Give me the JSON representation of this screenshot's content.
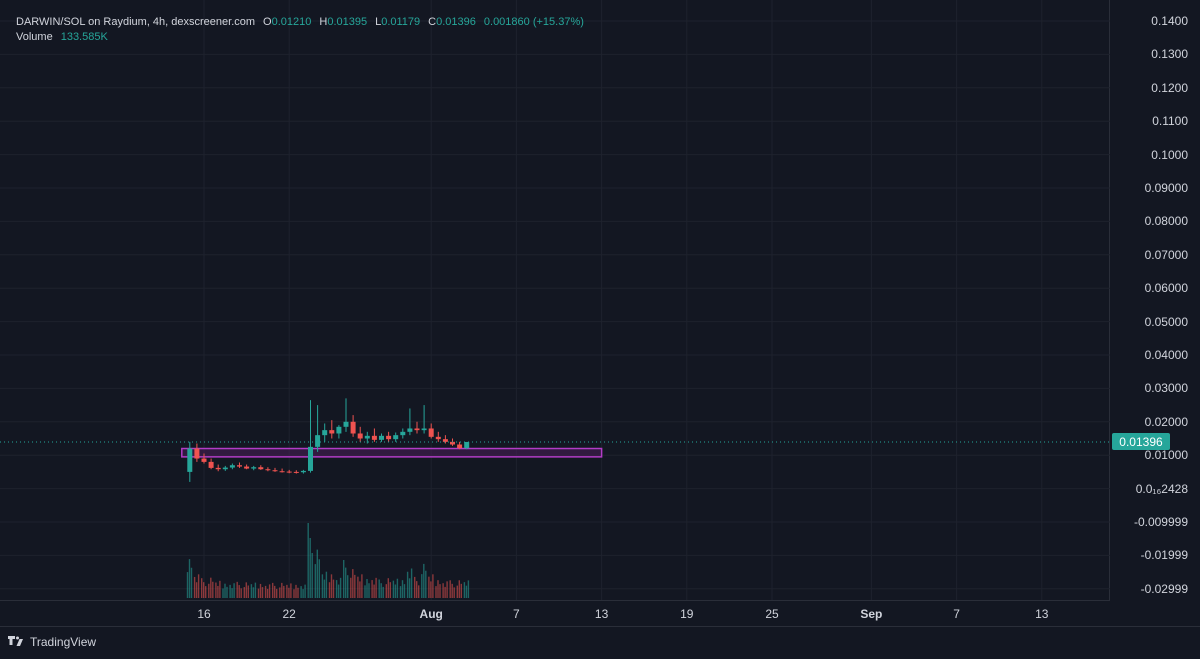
{
  "legend": {
    "symbol": "DARWIN/SOL on Raydium, 4h, dexscreener.com",
    "open_key": "O",
    "open": "0.01210",
    "high_key": "H",
    "high": "0.01395",
    "low_key": "L",
    "low": "0.01179",
    "close_key": "C",
    "close": "0.01396",
    "change": "0.001860 (+15.37%)",
    "volume_label": "Volume",
    "volume": "133.585K"
  },
  "price_axis": {
    "labels": [
      "0.1400",
      "0.1300",
      "0.1200",
      "0.1100",
      "0.1000",
      "0.09000",
      "0.08000",
      "0.07000",
      "0.06000",
      "0.05000",
      "0.04000",
      "0.03000",
      "0.02000",
      "0.01000",
      "0.0₁₆2428",
      "-0.009999",
      "-0.01999",
      "-0.02999"
    ]
  },
  "time_axis": {
    "labels": [
      "16",
      "22",
      "Aug",
      "7",
      "13",
      "19",
      "25",
      "Sep",
      "7",
      "13"
    ],
    "bold": [
      false,
      false,
      true,
      false,
      false,
      false,
      false,
      true,
      false,
      false
    ]
  },
  "last_price": "0.01396",
  "footer": {
    "brand": "TradingView"
  },
  "colors": {
    "background": "#131722",
    "grid": "#1e222d",
    "up": "#26a69a",
    "down": "#ef5350",
    "zone_border": "#b23cc6",
    "zone_fill": "#4a1e57"
  },
  "chart_data": {
    "type": "candlestick",
    "pair": "DARWIN/SOL",
    "interval": "4h",
    "ylim": [
      -0.035,
      0.142
    ],
    "x_range": [
      "Jul 12",
      "Sep 19"
    ],
    "last_price": 0.01396,
    "price_zone": {
      "x_start": "Jul 15",
      "x_end": "Aug 13",
      "y_low": 0.0095,
      "y_high": 0.012
    },
    "candles": [
      {
        "t": "Jul 15 00:00",
        "o": 0.005,
        "h": 0.014,
        "l": 0.002,
        "c": 0.012
      },
      {
        "t": "Jul 15 12:00",
        "o": 0.012,
        "h": 0.0135,
        "l": 0.008,
        "c": 0.009
      },
      {
        "t": "Jul 16 00:00",
        "o": 0.009,
        "h": 0.0105,
        "l": 0.0075,
        "c": 0.008
      },
      {
        "t": "Jul 16 12:00",
        "o": 0.008,
        "h": 0.009,
        "l": 0.0058,
        "c": 0.0062
      },
      {
        "t": "Jul 17 00:00",
        "o": 0.0062,
        "h": 0.0072,
        "l": 0.0052,
        "c": 0.0058
      },
      {
        "t": "Jul 17 12:00",
        "o": 0.0058,
        "h": 0.0068,
        "l": 0.0053,
        "c": 0.0063
      },
      {
        "t": "Jul 18 00:00",
        "o": 0.0063,
        "h": 0.0075,
        "l": 0.0058,
        "c": 0.007
      },
      {
        "t": "Jul 18 12:00",
        "o": 0.007,
        "h": 0.0078,
        "l": 0.0062,
        "c": 0.0066
      },
      {
        "t": "Jul 19 00:00",
        "o": 0.0066,
        "h": 0.0072,
        "l": 0.0058,
        "c": 0.006
      },
      {
        "t": "Jul 19 12:00",
        "o": 0.006,
        "h": 0.0068,
        "l": 0.0055,
        "c": 0.0064
      },
      {
        "t": "Jul 20 00:00",
        "o": 0.0064,
        "h": 0.007,
        "l": 0.0056,
        "c": 0.0058
      },
      {
        "t": "Jul 20 12:00",
        "o": 0.0058,
        "h": 0.0064,
        "l": 0.0052,
        "c": 0.0055
      },
      {
        "t": "Jul 21 00:00",
        "o": 0.0055,
        "h": 0.0062,
        "l": 0.005,
        "c": 0.0052
      },
      {
        "t": "Jul 21 12:00",
        "o": 0.0052,
        "h": 0.006,
        "l": 0.0048,
        "c": 0.0051
      },
      {
        "t": "Jul 22 00:00",
        "o": 0.0051,
        "h": 0.0056,
        "l": 0.0046,
        "c": 0.005
      },
      {
        "t": "Jul 22 12:00",
        "o": 0.005,
        "h": 0.0055,
        "l": 0.0045,
        "c": 0.0049
      },
      {
        "t": "Jul 23 00:00",
        "o": 0.0049,
        "h": 0.0056,
        "l": 0.0045,
        "c": 0.0053
      },
      {
        "t": "Jul 23 12:00",
        "o": 0.0053,
        "h": 0.0265,
        "l": 0.0048,
        "c": 0.0125
      },
      {
        "t": "Jul 24 00:00",
        "o": 0.0125,
        "h": 0.025,
        "l": 0.011,
        "c": 0.016
      },
      {
        "t": "Jul 24 12:00",
        "o": 0.016,
        "h": 0.0195,
        "l": 0.014,
        "c": 0.0175
      },
      {
        "t": "Jul 25 00:00",
        "o": 0.0175,
        "h": 0.0205,
        "l": 0.015,
        "c": 0.0165
      },
      {
        "t": "Jul 25 12:00",
        "o": 0.0165,
        "h": 0.019,
        "l": 0.015,
        "c": 0.0185
      },
      {
        "t": "Jul 26 00:00",
        "o": 0.0185,
        "h": 0.027,
        "l": 0.017,
        "c": 0.02
      },
      {
        "t": "Jul 26 12:00",
        "o": 0.02,
        "h": 0.022,
        "l": 0.0155,
        "c": 0.0165
      },
      {
        "t": "Jul 27 00:00",
        "o": 0.0165,
        "h": 0.0185,
        "l": 0.014,
        "c": 0.015
      },
      {
        "t": "Jul 27 12:00",
        "o": 0.015,
        "h": 0.017,
        "l": 0.0135,
        "c": 0.0158
      },
      {
        "t": "Jul 28 00:00",
        "o": 0.0158,
        "h": 0.018,
        "l": 0.014,
        "c": 0.0146
      },
      {
        "t": "Jul 28 12:00",
        "o": 0.0146,
        "h": 0.0165,
        "l": 0.014,
        "c": 0.0158
      },
      {
        "t": "Jul 29 00:00",
        "o": 0.0158,
        "h": 0.017,
        "l": 0.014,
        "c": 0.0148
      },
      {
        "t": "Jul 29 12:00",
        "o": 0.0148,
        "h": 0.0168,
        "l": 0.014,
        "c": 0.016
      },
      {
        "t": "Jul 30 00:00",
        "o": 0.016,
        "h": 0.018,
        "l": 0.015,
        "c": 0.017
      },
      {
        "t": "Jul 30 12:00",
        "o": 0.017,
        "h": 0.024,
        "l": 0.016,
        "c": 0.018
      },
      {
        "t": "Jul 31 00:00",
        "o": 0.018,
        "h": 0.02,
        "l": 0.0165,
        "c": 0.0175
      },
      {
        "t": "Jul 31 12:00",
        "o": 0.0175,
        "h": 0.025,
        "l": 0.0165,
        "c": 0.018
      },
      {
        "t": "Aug 1 00:00",
        "o": 0.018,
        "h": 0.0195,
        "l": 0.015,
        "c": 0.0155
      },
      {
        "t": "Aug 1 12:00",
        "o": 0.0155,
        "h": 0.017,
        "l": 0.014,
        "c": 0.0148
      },
      {
        "t": "Aug 2 00:00",
        "o": 0.0148,
        "h": 0.016,
        "l": 0.0135,
        "c": 0.014
      },
      {
        "t": "Aug 2 12:00",
        "o": 0.014,
        "h": 0.015,
        "l": 0.0128,
        "c": 0.0132
      },
      {
        "t": "Aug 3 00:00",
        "o": 0.0132,
        "h": 0.014,
        "l": 0.0118,
        "c": 0.0121
      },
      {
        "t": "Aug 3 12:00",
        "o": 0.0121,
        "h": 0.01395,
        "l": 0.01179,
        "c": 0.01396
      }
    ]
  }
}
